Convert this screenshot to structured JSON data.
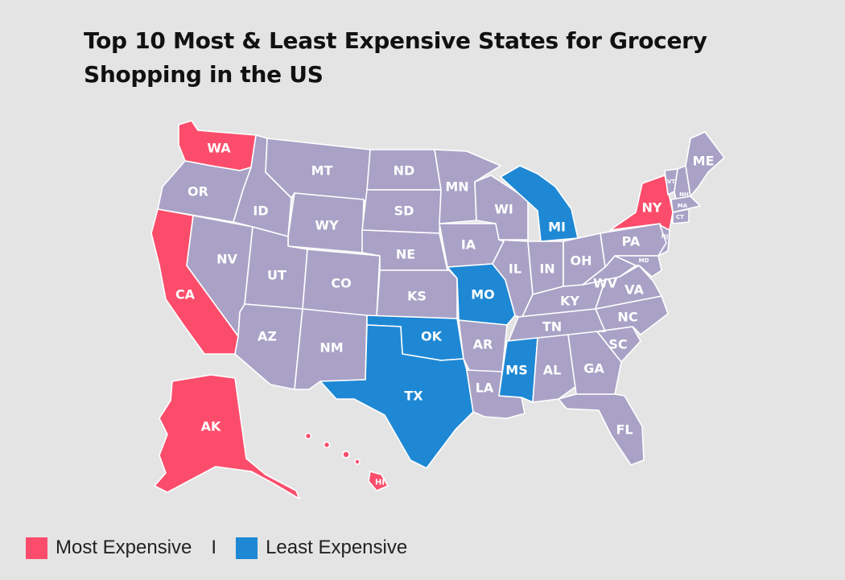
{
  "title": "Top 10 Most & Least Expensive States for Grocery Shopping in the US",
  "colors": {
    "most": "#fb4d6b",
    "least": "#1e88d4",
    "other": "#a9a2c6",
    "background": "#e5e4e5"
  },
  "legend": {
    "most_label": "Most Expensive",
    "separator": "I",
    "least_label": "Least Expensive"
  },
  "states": [
    {
      "code": "WA",
      "category": "most"
    },
    {
      "code": "OR",
      "category": "other"
    },
    {
      "code": "CA",
      "category": "most"
    },
    {
      "code": "NV",
      "category": "other"
    },
    {
      "code": "ID",
      "category": "other"
    },
    {
      "code": "MT",
      "category": "other"
    },
    {
      "code": "WY",
      "category": "other"
    },
    {
      "code": "UT",
      "category": "other"
    },
    {
      "code": "AZ",
      "category": "other"
    },
    {
      "code": "CO",
      "category": "other"
    },
    {
      "code": "NM",
      "category": "other"
    },
    {
      "code": "ND",
      "category": "other"
    },
    {
      "code": "SD",
      "category": "other"
    },
    {
      "code": "NE",
      "category": "other"
    },
    {
      "code": "KS",
      "category": "other"
    },
    {
      "code": "OK",
      "category": "least"
    },
    {
      "code": "TX",
      "category": "least"
    },
    {
      "code": "MN",
      "category": "other"
    },
    {
      "code": "IA",
      "category": "other"
    },
    {
      "code": "MO",
      "category": "least"
    },
    {
      "code": "AR",
      "category": "other"
    },
    {
      "code": "LA",
      "category": "other"
    },
    {
      "code": "WI",
      "category": "other"
    },
    {
      "code": "IL",
      "category": "other"
    },
    {
      "code": "MI",
      "category": "least"
    },
    {
      "code": "IN",
      "category": "other"
    },
    {
      "code": "OH",
      "category": "other"
    },
    {
      "code": "KY",
      "category": "other"
    },
    {
      "code": "TN",
      "category": "other"
    },
    {
      "code": "MS",
      "category": "least"
    },
    {
      "code": "AL",
      "category": "other"
    },
    {
      "code": "GA",
      "category": "other"
    },
    {
      "code": "FL",
      "category": "other"
    },
    {
      "code": "SC",
      "category": "other"
    },
    {
      "code": "NC",
      "category": "other"
    },
    {
      "code": "VA",
      "category": "other"
    },
    {
      "code": "WV",
      "category": "other"
    },
    {
      "code": "PA",
      "category": "other"
    },
    {
      "code": "NY",
      "category": "most"
    },
    {
      "code": "NJ",
      "category": "other"
    },
    {
      "code": "MD",
      "category": "other"
    },
    {
      "code": "VT",
      "category": "other"
    },
    {
      "code": "NH",
      "category": "other"
    },
    {
      "code": "MA",
      "category": "other"
    },
    {
      "code": "CT",
      "category": "other"
    },
    {
      "code": "ME",
      "category": "other"
    },
    {
      "code": "AK",
      "category": "most"
    },
    {
      "code": "HI",
      "category": "most"
    }
  ]
}
